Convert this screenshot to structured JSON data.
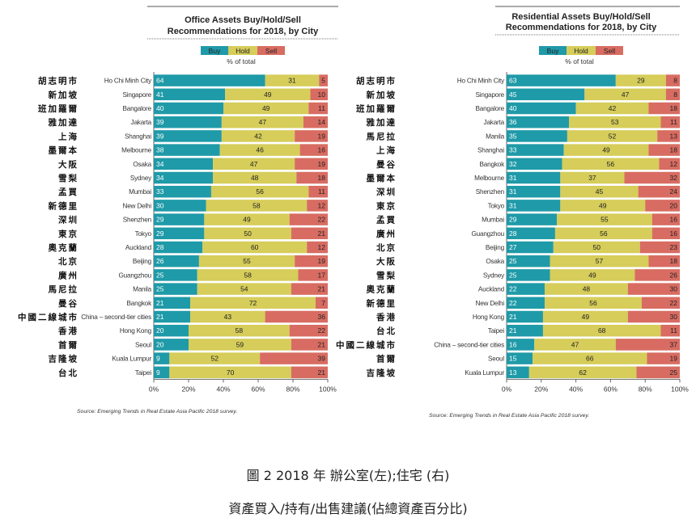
{
  "colors": {
    "buy": "#1f9aa8",
    "hold": "#d6cd5a",
    "sell": "#d86c62",
    "axis": "#666666",
    "grid": "#aaaaaa"
  },
  "caption": {
    "line1": "圖 2 2018 年 辦公室(左);住宅 (右)",
    "line2": "資產買入/持有/出售建議(佔總資產百分比)"
  },
  "chart_data": [
    {
      "type": "bar",
      "stacked": true,
      "orientation": "horizontal",
      "title": "Office Assets Buy/Hold/Sell Recommendations for 2018, by City",
      "title_lines": [
        "Office Assets Buy/Hold/Sell",
        "Recommendations for 2018, by City"
      ],
      "xlabel": "% of total",
      "xlim": [
        0,
        100
      ],
      "xticks": [
        "0%",
        "20%",
        "40%",
        "60%",
        "80%",
        "100%"
      ],
      "legend": [
        "Buy",
        "Hold",
        "Sell"
      ],
      "legend_position": "top",
      "source": "Source: Emerging Trends in Real Estate Asia Pacific 2018 survey.",
      "categories": [
        "Ho Chi Minh City",
        "Singapore",
        "Bangalore",
        "Jakarta",
        "Shanghai",
        "Melbourne",
        "Osaka",
        "Sydney",
        "Mumbai",
        "New Delhi",
        "Shenzhen",
        "Tokyo",
        "Auckland",
        "Beijing",
        "Guangzhou",
        "Manila",
        "Bangkok",
        "China – second-tier cities",
        "Hong Kong",
        "Seoul",
        "Kuala Lumpur",
        "Taipei"
      ],
      "categories_zh": [
        "胡志明市",
        "新加坡",
        "班加羅爾",
        "雅加達",
        "上海",
        "墨爾本",
        "大阪",
        "雪梨",
        "孟買",
        "新德里",
        "深圳",
        "東京",
        "奧克蘭",
        "北京",
        "廣州",
        "馬尼拉",
        "曼谷",
        "中國二線城市",
        "香港",
        "首爾",
        "吉隆坡",
        "台北"
      ],
      "series": [
        {
          "name": "Buy",
          "values": [
            64,
            41,
            40,
            39,
            39,
            38,
            34,
            34,
            33,
            30,
            29,
            29,
            28,
            26,
            25,
            25,
            21,
            21,
            20,
            20,
            9,
            9
          ]
        },
        {
          "name": "Hold",
          "values": [
            31,
            49,
            49,
            47,
            42,
            46,
            47,
            48,
            56,
            58,
            49,
            50,
            60,
            55,
            58,
            54,
            72,
            43,
            58,
            59,
            52,
            70
          ]
        },
        {
          "name": "Sell",
          "values": [
            5,
            10,
            11,
            14,
            19,
            16,
            19,
            18,
            11,
            12,
            22,
            21,
            12,
            19,
            17,
            21,
            7,
            36,
            22,
            21,
            39,
            21
          ]
        }
      ]
    },
    {
      "type": "bar",
      "stacked": true,
      "orientation": "horizontal",
      "title": "Residential Assets Buy/Hold/Sell Recommendations for 2018, by City",
      "title_lines": [
        "Residential Assets Buy/Hold/Sell",
        "Recommendations for 2018, by City"
      ],
      "xlabel": "% of total",
      "xlim": [
        0,
        100
      ],
      "xticks": [
        "0%",
        "20%",
        "40%",
        "60%",
        "80%",
        "100%"
      ],
      "legend": [
        "Buy",
        "Hold",
        "Sell"
      ],
      "legend_position": "top",
      "source": "Source: Emerging Trends in Real Estate Asia Pacific 2018 survey.",
      "categories": [
        "Ho Chi Minh City",
        "Singapore",
        "Bangalore",
        "Jakarta",
        "Manila",
        "Shanghai",
        "Bangkok",
        "Melbourne",
        "Shenzhen",
        "Tokyo",
        "Mumbai",
        "Guangzhou",
        "Beijing",
        "Osaka",
        "Sydney",
        "Auckland",
        "New Delhi",
        "Hong Kong",
        "Taipei",
        "China – second-tier cities",
        "Seoul",
        "Kuala Lumpur"
      ],
      "categories_zh": [
        "胡志明市",
        "新加坡",
        "班加羅爾",
        "雅加達",
        "馬尼拉",
        "上海",
        "曼谷",
        "墨爾本",
        "深圳",
        "東京",
        "孟買",
        "廣州",
        "北京",
        "大阪",
        "雪梨",
        "奧克蘭",
        "新德里",
        "香港",
        "台北",
        "中國二線城市",
        "首爾",
        "吉隆坡"
      ],
      "series": [
        {
          "name": "Buy",
          "values": [
            63,
            45,
            40,
            36,
            35,
            33,
            32,
            31,
            31,
            31,
            29,
            28,
            27,
            25,
            25,
            22,
            22,
            21,
            21,
            16,
            15,
            13
          ]
        },
        {
          "name": "Hold",
          "values": [
            29,
            47,
            42,
            53,
            52,
            49,
            56,
            37,
            45,
            49,
            55,
            56,
            50,
            57,
            49,
            48,
            56,
            49,
            68,
            47,
            66,
            62
          ]
        },
        {
          "name": "Sell",
          "values": [
            8,
            8,
            18,
            11,
            13,
            18,
            12,
            32,
            24,
            20,
            16,
            16,
            23,
            18,
            26,
            30,
            22,
            30,
            11,
            37,
            19,
            25
          ]
        }
      ]
    }
  ]
}
